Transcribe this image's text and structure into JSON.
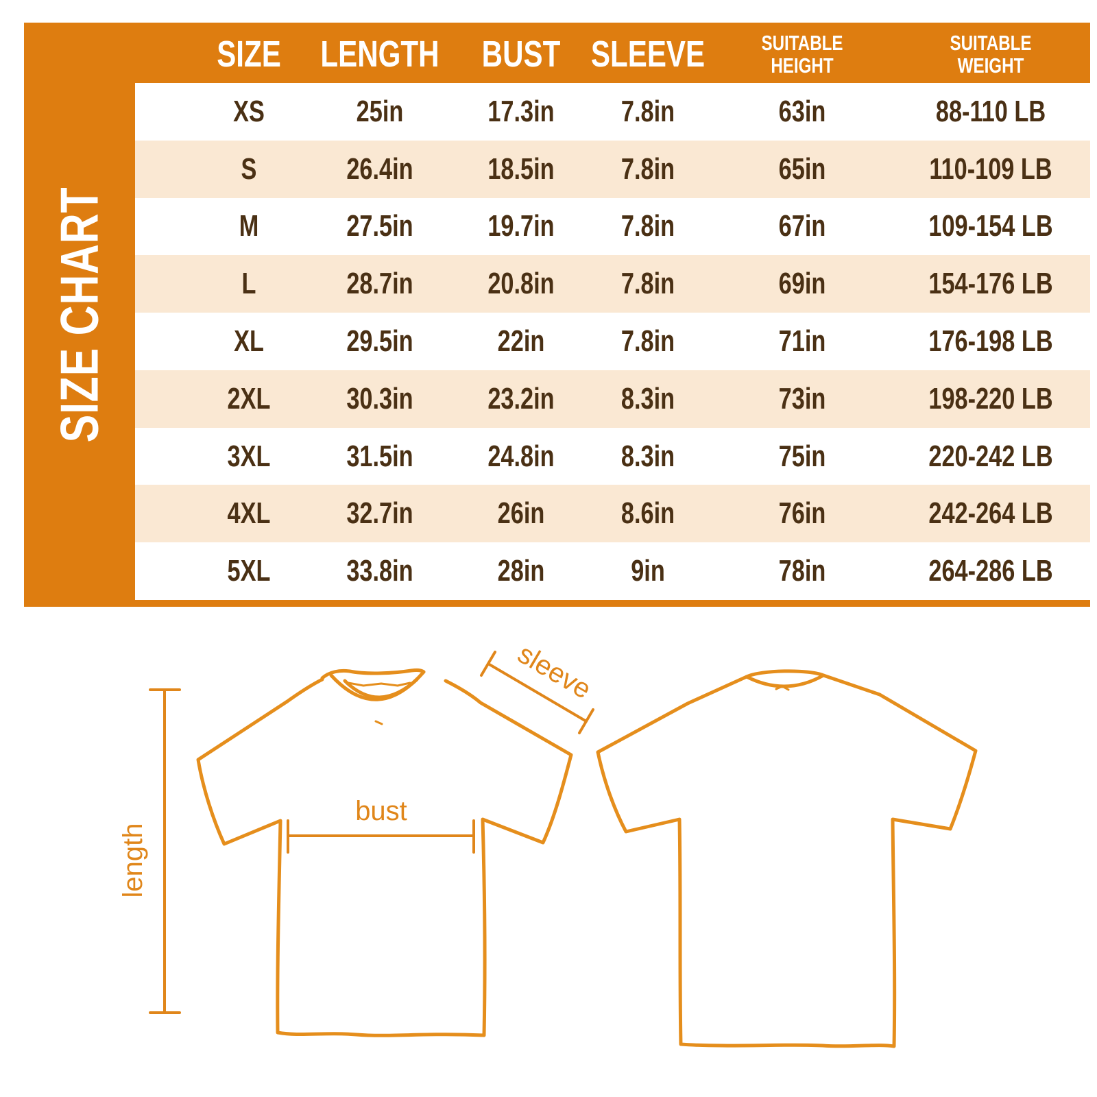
{
  "title": "SIZE CHART",
  "table": {
    "columns": [
      {
        "key": "size",
        "lines": [
          "SIZE"
        ]
      },
      {
        "key": "length",
        "lines": [
          "LENGTH"
        ]
      },
      {
        "key": "bust",
        "lines": [
          "BUST"
        ]
      },
      {
        "key": "sleeve",
        "lines": [
          "SLEEVE"
        ]
      },
      {
        "key": "height",
        "lines": [
          "SUITABLE",
          "HEIGHT"
        ]
      },
      {
        "key": "weight",
        "lines": [
          "SUITABLE",
          "WEIGHT"
        ]
      }
    ],
    "rows": [
      {
        "size": "XS",
        "length": "25in",
        "bust": "17.3in",
        "sleeve": "7.8in",
        "height": "63in",
        "weight": "88-110 LB"
      },
      {
        "size": "S",
        "length": "26.4in",
        "bust": "18.5in",
        "sleeve": "7.8in",
        "height": "65in",
        "weight": "110-109 LB"
      },
      {
        "size": "M",
        "length": "27.5in",
        "bust": "19.7in",
        "sleeve": "7.8in",
        "height": "67in",
        "weight": "109-154 LB"
      },
      {
        "size": "L",
        "length": "28.7in",
        "bust": "20.8in",
        "sleeve": "7.8in",
        "height": "69in",
        "weight": "154-176 LB"
      },
      {
        "size": "XL",
        "length": "29.5in",
        "bust": "22in",
        "sleeve": "7.8in",
        "height": "71in",
        "weight": "176-198 LB"
      },
      {
        "size": "2XL",
        "length": "30.3in",
        "bust": "23.2in",
        "sleeve": "8.3in",
        "height": "73in",
        "weight": "198-220 LB"
      },
      {
        "size": "3XL",
        "length": "31.5in",
        "bust": "24.8in",
        "sleeve": "8.3in",
        "height": "75in",
        "weight": "220-242 LB"
      },
      {
        "size": "4XL",
        "length": "32.7in",
        "bust": "26in",
        "sleeve": "8.6in",
        "height": "76in",
        "weight": "242-264 LB"
      },
      {
        "size": "5XL",
        "length": "33.8in",
        "bust": "28in",
        "sleeve": "9in",
        "height": "78in",
        "weight": "264-286 LB"
      }
    ]
  },
  "diagram": {
    "length_label": "length",
    "bust_label": "bust",
    "sleeve_label": "sleeve"
  },
  "colors": {
    "orange": "#DE7D10",
    "row_peach": "#FAE8D3",
    "row_white": "#FFFFFF",
    "header_text": "#FFFFFF",
    "text_brown": "#4A3014",
    "shirt_outline": "#E58E1C",
    "annotation": "#E0861A"
  }
}
